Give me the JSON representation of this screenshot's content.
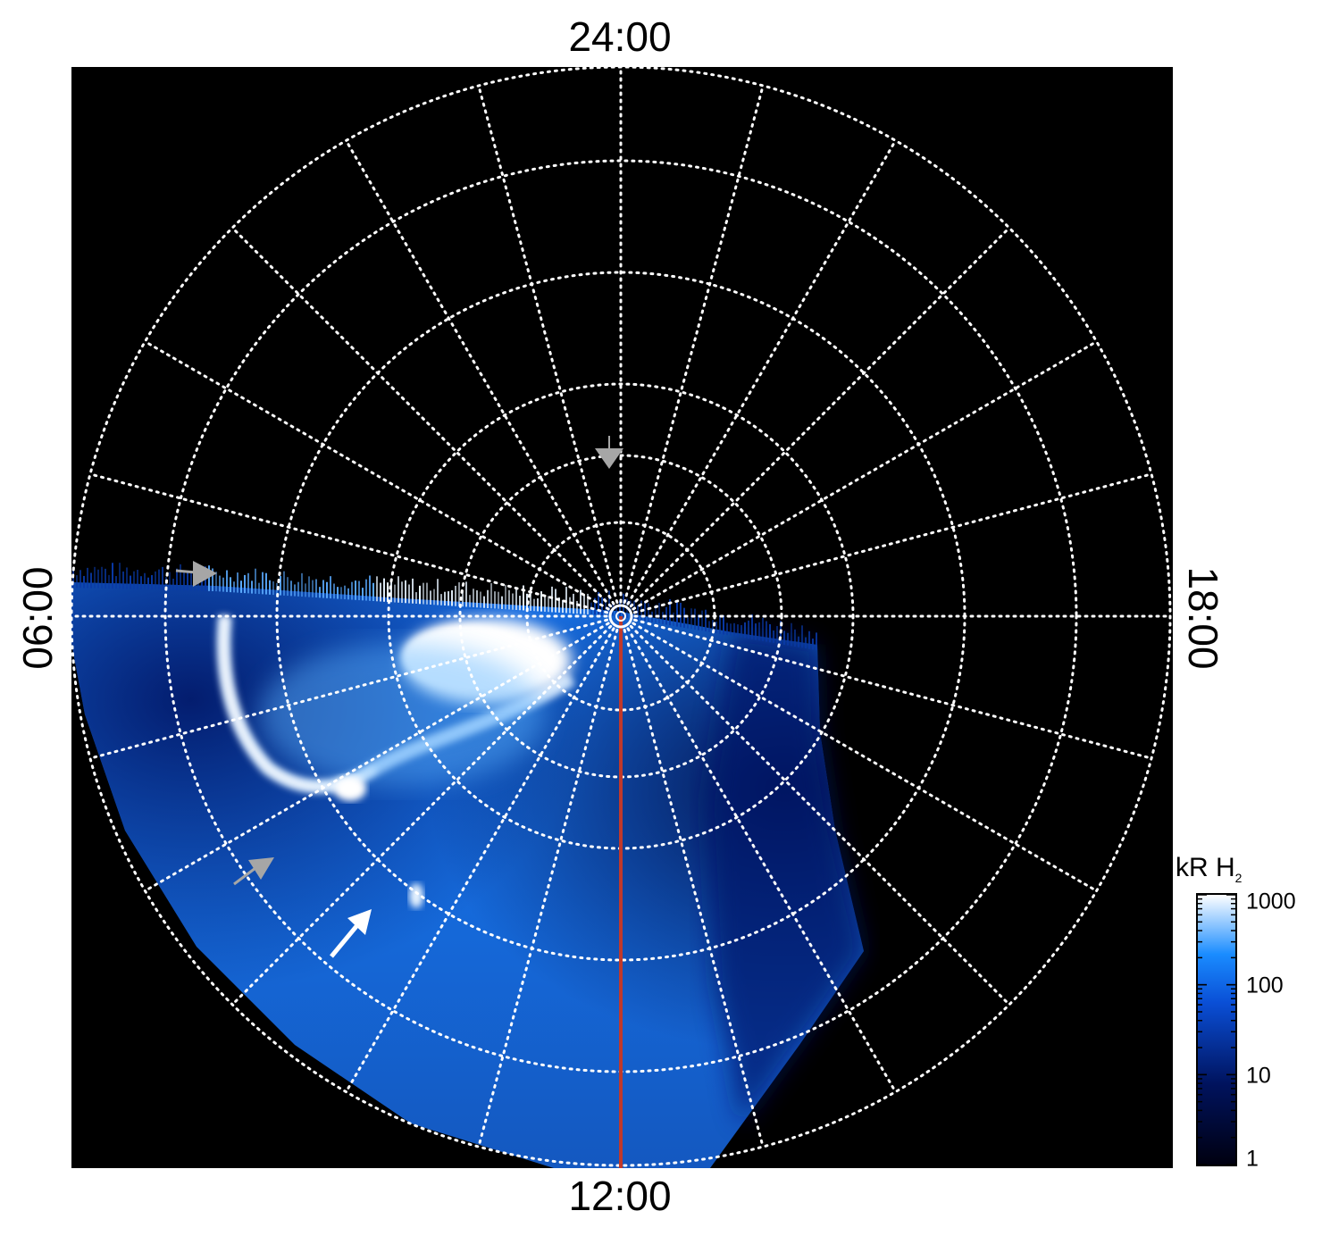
{
  "local_time_labels": {
    "top": "24:00",
    "right": "18:00",
    "bottom": "12:00",
    "left": "06:00"
  },
  "colorbar": {
    "title_main": "kR H",
    "title_sub": "2",
    "scale": "log",
    "ticks": [
      "1000",
      "100",
      "10",
      "1"
    ],
    "colors": [
      "#000010",
      "#00135e",
      "#0a4fd6",
      "#1a8cff",
      "#ffffff"
    ]
  },
  "overlay": {
    "grid_color": "#ffffff",
    "meridian_color": "#c0392b",
    "arrow_colors": [
      "#a6a6a6",
      "#ffffff"
    ]
  }
}
